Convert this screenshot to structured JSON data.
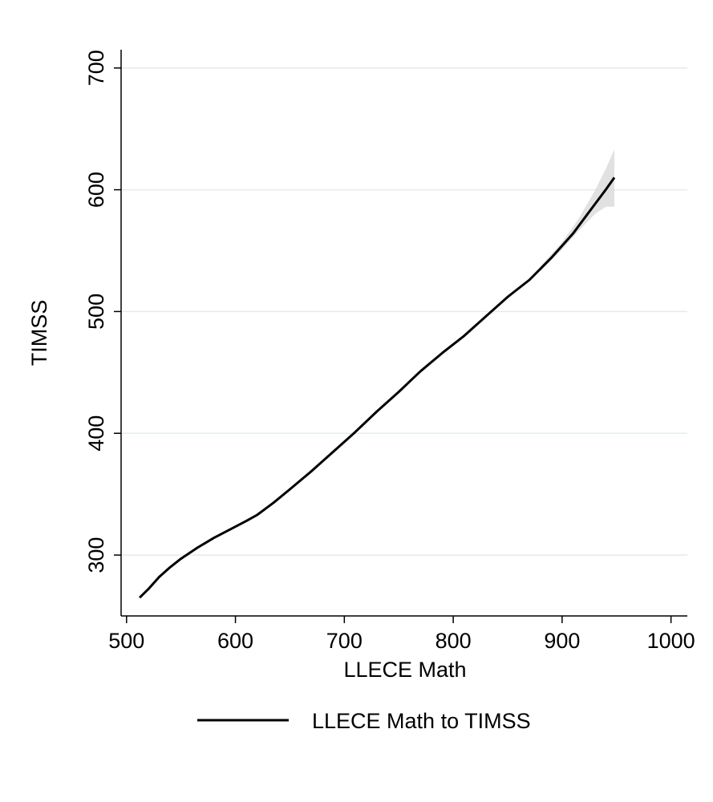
{
  "chart_data": {
    "type": "line",
    "title": "",
    "xlabel": "LLECE Math",
    "ylabel": "TIMSS",
    "xlim": [
      495,
      1015
    ],
    "ylim": [
      250,
      715
    ],
    "xticks": [
      500,
      600,
      700,
      800,
      900,
      1000
    ],
    "yticks": [
      300,
      400,
      500,
      600,
      700
    ],
    "grid": true,
    "legend": "bottom",
    "series": [
      {
        "name": "LLECE Math to TIMSS",
        "color": "#000000",
        "x": [
          512,
          520,
          530,
          540,
          550,
          565,
          580,
          595,
          610,
          620,
          635,
          650,
          670,
          690,
          710,
          730,
          750,
          770,
          790,
          810,
          830,
          850,
          870,
          890,
          910,
          925,
          940,
          948
        ],
        "y": [
          265,
          272,
          282,
          290,
          297,
          306,
          314,
          321,
          328,
          333,
          343,
          354,
          369,
          385,
          401,
          418,
          434,
          451,
          466,
          480,
          496,
          512,
          526,
          544,
          564,
          582,
          600,
          610
        ]
      }
    ],
    "confidence_band": {
      "color": "#d9d9d9",
      "x": [
        880,
        900,
        915,
        930,
        940,
        948
      ],
      "upper": [
        537,
        557,
        576,
        599,
        617,
        633
      ],
      "lower": [
        533,
        551,
        566,
        580,
        586,
        586
      ]
    }
  }
}
